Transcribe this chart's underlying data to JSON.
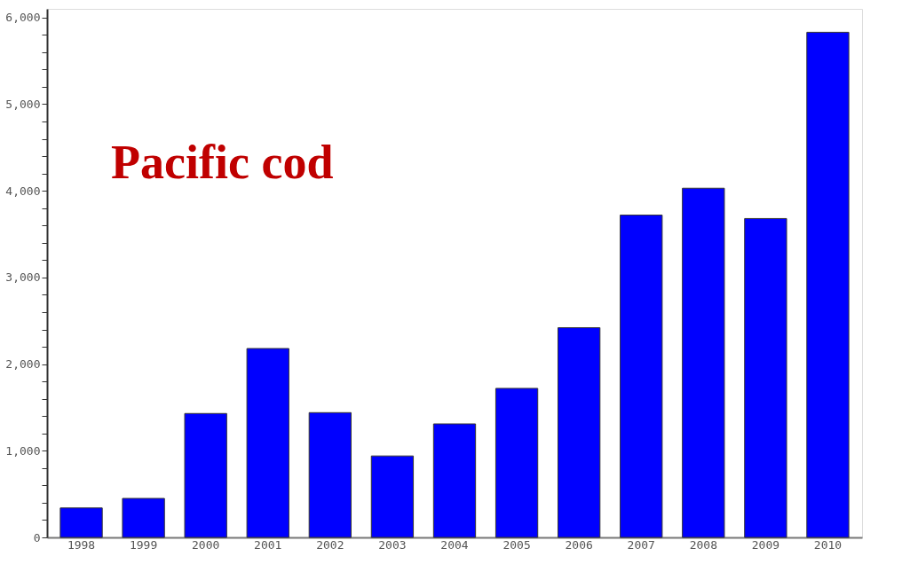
{
  "chart_data": {
    "type": "bar",
    "title": "Pacific cod",
    "categories": [
      "1998",
      "1999",
      "2000",
      "2001",
      "2002",
      "2003",
      "2004",
      "2005",
      "2006",
      "2007",
      "2008",
      "2009",
      "2010"
    ],
    "values": [
      340,
      450,
      1430,
      2180,
      1440,
      940,
      1310,
      1720,
      2420,
      3720,
      4030,
      3680,
      5830
    ],
    "color": "#0000ff",
    "ylim": [
      0,
      6100
    ],
    "yticks": [
      0,
      {
        "value": 200,
        "label": null
      },
      {
        "value": 400,
        "label": null
      },
      {
        "value": 600,
        "label": null
      },
      {
        "value": 800,
        "label": null
      },
      {
        "value": 1000,
        "label": "1,000"
      },
      {
        "value": 1200,
        "label": null
      },
      {
        "value": 1400,
        "label": null
      },
      {
        "value": 1600,
        "label": null
      },
      {
        "value": 1800,
        "label": null
      },
      {
        "value": 2000,
        "label": "2,000"
      },
      {
        "value": 2200,
        "label": null
      },
      {
        "value": 2400,
        "label": null
      },
      {
        "value": 2600,
        "label": null
      },
      {
        "value": 2800,
        "label": null
      },
      {
        "value": 3000,
        "label": "3,000"
      },
      {
        "value": 3200,
        "label": null
      },
      {
        "value": 3400,
        "label": null
      },
      {
        "value": 3600,
        "label": null
      },
      {
        "value": 3800,
        "label": null
      },
      {
        "value": 4000,
        "label": "4,000"
      },
      {
        "value": 4200,
        "label": null
      },
      {
        "value": 4400,
        "label": null
      },
      {
        "value": 4600,
        "label": null
      },
      {
        "value": 4800,
        "label": null
      },
      {
        "value": 5000,
        "label": "5,000"
      },
      {
        "value": 5200,
        "label": null
      },
      {
        "value": 5400,
        "label": null
      },
      {
        "value": 5600,
        "label": null
      },
      {
        "value": 5800,
        "label": null
      },
      {
        "value": 6000,
        "label": "6,000"
      }
    ],
    "grid": false
  }
}
